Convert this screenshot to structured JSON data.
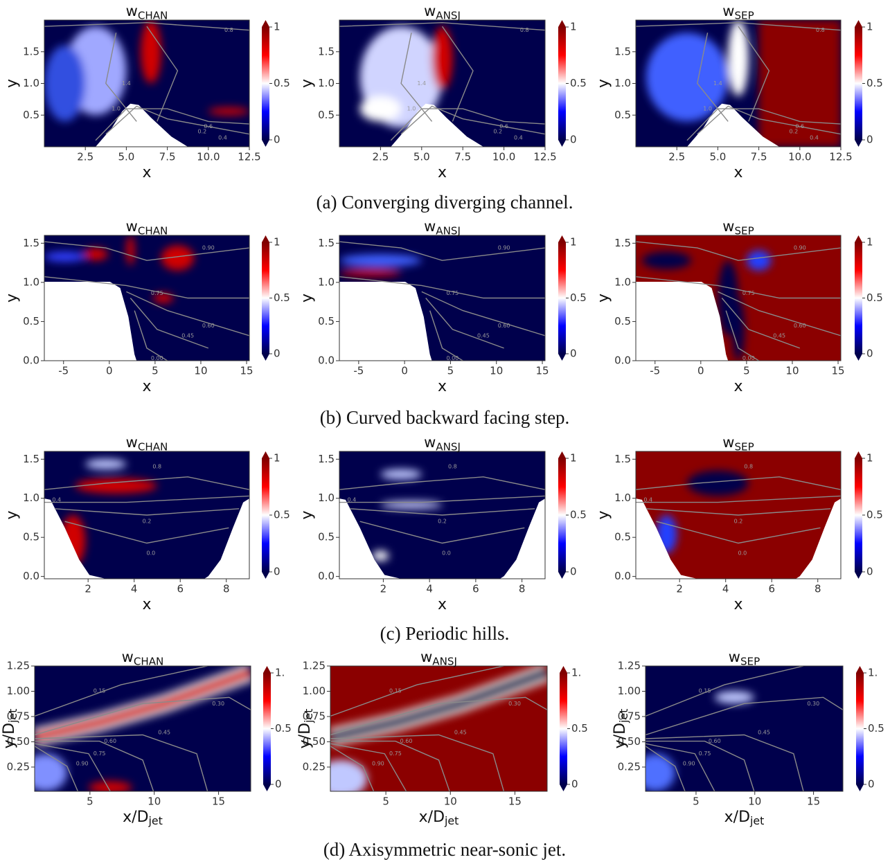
{
  "rows": [
    {
      "caption": "(a) Converging diverging channel.",
      "panels": [
        {
          "title": {
            "symbol": "w",
            "subscript": "CHAN"
          }
        },
        {
          "title": {
            "symbol": "w",
            "subscript": "ANSJ"
          }
        },
        {
          "title": {
            "symbol": "w",
            "subscript": "SEP"
          }
        }
      ],
      "xlabel": {
        "text": "x"
      },
      "ylabel": {
        "text": "y"
      },
      "xlim": [
        0,
        12.5
      ],
      "ylim": [
        0,
        2
      ],
      "xticks": [
        2.5,
        {
          "value": 5,
          "label": "5.0"
        },
        7.5,
        {
          "value": 10,
          "label": "10.0"
        },
        12.5
      ],
      "yticks": [
        0.5,
        {
          "value": 1,
          "label": "1.0"
        },
        1.5
      ],
      "cbar_lim": [
        0,
        1
      ],
      "cbar_ticks": [
        0,
        0.5,
        1
      ],
      "contour_labels": [
        "0.8",
        "1.4",
        "1.0",
        "0.6",
        "0.4",
        "0.2"
      ]
    },
    {
      "caption": "(b) Curved backward facing step.",
      "panels": [
        {
          "title": {
            "symbol": "w",
            "subscript": "CHAN"
          }
        },
        {
          "title": {
            "symbol": "w",
            "subscript": "ANSJ"
          }
        },
        {
          "title": {
            "symbol": "w",
            "subscript": "SEP"
          }
        }
      ],
      "xlabel": {
        "text": "x"
      },
      "ylabel": {
        "text": "y"
      },
      "xlim": [
        -7.1,
        15.3
      ],
      "ylim": [
        0,
        1.6
      ],
      "xticks": [
        -5,
        0,
        5,
        10,
        15
      ],
      "yticks": [
        {
          "value": 0,
          "label": "0.0"
        },
        0.5,
        {
          "value": 1,
          "label": "1.0"
        },
        1.5
      ],
      "cbar_lim": [
        0,
        1
      ],
      "cbar_ticks": [
        0,
        0.5,
        1
      ],
      "contour_labels": [
        "0.90",
        "0.75",
        "0.60",
        "0.45",
        "0.00"
      ]
    },
    {
      "caption": "(c) Periodic hills.",
      "panels": [
        {
          "title": {
            "symbol": "w",
            "subscript": "CHAN"
          }
        },
        {
          "title": {
            "symbol": "w",
            "subscript": "ANSJ"
          }
        },
        {
          "title": {
            "symbol": "w",
            "subscript": "SEP"
          }
        }
      ],
      "xlabel": {
        "text": "x"
      },
      "ylabel": {
        "text": "y"
      },
      "xlim": [
        0.1,
        9
      ],
      "ylim": [
        -0.03,
        1.6
      ],
      "xticks": [
        2,
        4,
        6,
        8
      ],
      "yticks": [
        {
          "value": 0,
          "label": "0.0"
        },
        0.5,
        {
          "value": 1,
          "label": "1.0"
        },
        1.5
      ],
      "cbar_lim": [
        0,
        1
      ],
      "cbar_ticks": [
        0,
        0.5,
        1
      ],
      "contour_labels": [
        "0.8",
        "0.4",
        "0.2",
        "0.0"
      ]
    },
    {
      "caption": "(d) Axisymmetric near-sonic jet.",
      "panels": [
        {
          "title": {
            "symbol": "w",
            "subscript": "CHAN"
          }
        },
        {
          "title": {
            "symbol": "w",
            "subscript": "ANSJ"
          }
        },
        {
          "title": {
            "symbol": "w",
            "subscript": "SEP"
          }
        }
      ],
      "xlabel": {
        "text": "x/D",
        "subscript": "jet"
      },
      "ylabel": {
        "text": "y/D",
        "subscript": "jet"
      },
      "xlim": [
        0.7,
        17.5
      ],
      "ylim": [
        0.01,
        1.25
      ],
      "xticks": [
        5,
        10,
        15
      ],
      "yticks": [
        0.25,
        {
          "value": 0.5,
          "label": "0.50"
        },
        0.75,
        {
          "value": 1,
          "label": "1.00"
        },
        1.25
      ],
      "cbar_lim": [
        0,
        1
      ],
      "cbar_ticks": [
        0,
        0.5,
        {
          "value": 1,
          "label": "1."
        }
      ],
      "contour_labels": [
        "0.15",
        "0.30",
        "0.45",
        "0.60",
        "0.75",
        "0.90"
      ]
    }
  ]
}
